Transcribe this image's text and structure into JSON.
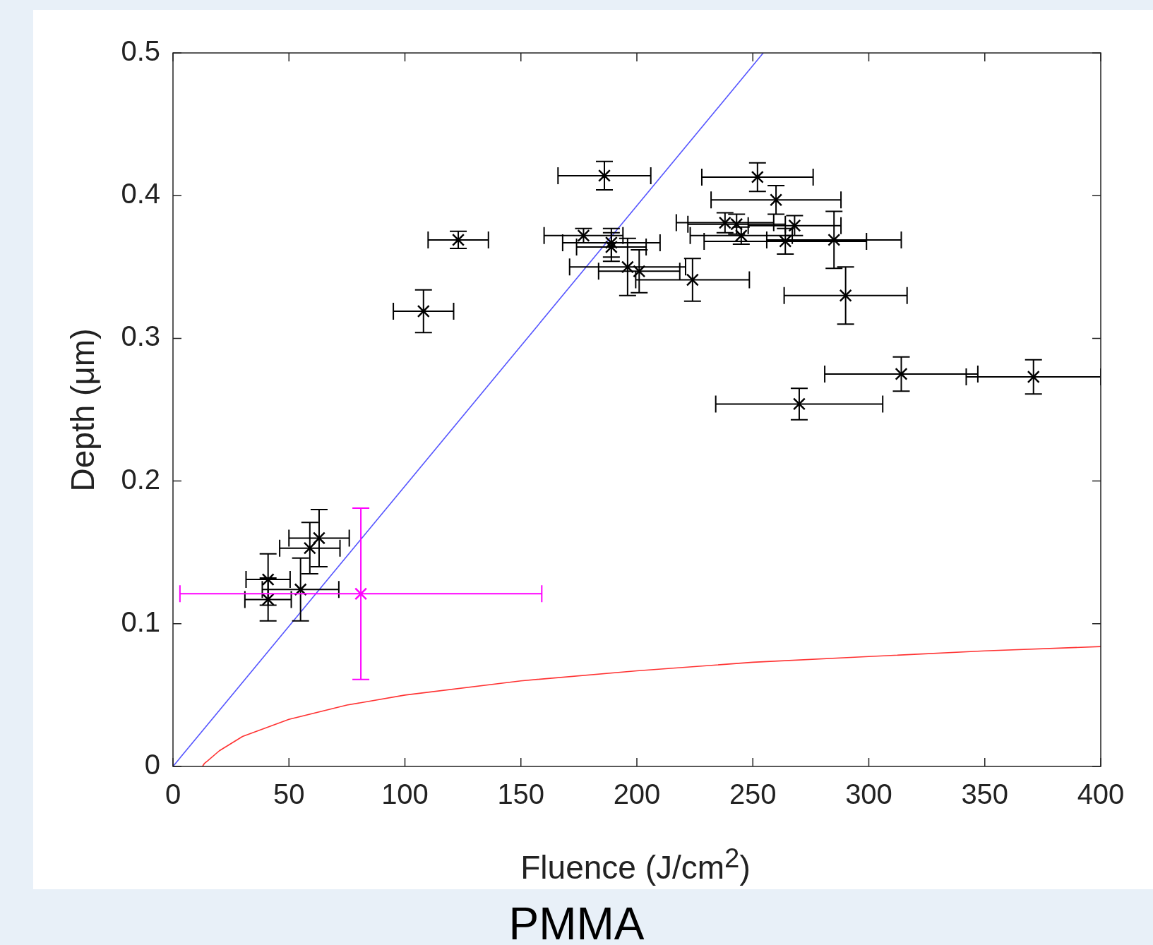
{
  "chart_data": {
    "type": "scatter",
    "title": "PMMA",
    "xlabel": "Fluence (J/cm$^{2}$)",
    "ylabel": "Depth (μm)",
    "xlim": [
      0,
      400
    ],
    "xticks": [
      0,
      50,
      100,
      150,
      200,
      250,
      300,
      350,
      400
    ],
    "ylim": [
      0,
      0.5
    ],
    "yticks": [
      0,
      0.1,
      0.2,
      0.3,
      0.4,
      0.5
    ],
    "grid": false,
    "legend": false,
    "series": [
      {
        "color": "#000000",
        "marker": "cross",
        "x": [
          41,
          41,
          55,
          59,
          63,
          108,
          123,
          186,
          252,
          260,
          177,
          189,
          189,
          196,
          201,
          224,
          238,
          243,
          245,
          268,
          264,
          285,
          290,
          270,
          314,
          371
        ],
        "values": [
          0.131,
          0.117,
          0.124,
          0.153,
          0.16,
          0.319,
          0.369,
          0.414,
          0.413,
          0.397,
          0.372,
          0.367,
          0.364,
          0.35,
          0.347,
          0.341,
          0.381,
          0.38,
          0.372,
          0.379,
          0.368,
          0.369,
          0.33,
          0.254,
          0.275,
          0.273
        ],
        "errors": [
          0.018,
          0.015,
          0.022,
          0.018,
          0.02,
          0.015,
          0.006,
          0.01,
          0.01,
          0.01,
          0.005,
          0.01,
          0.01,
          0.02,
          0.015,
          0.015,
          0.007,
          0.007,
          0.006,
          0.007,
          0.009,
          0.02,
          0.02,
          0.011,
          0.012,
          0.012
        ],
        "xerrors": [
          9.5,
          10,
          16.5,
          13,
          13,
          13,
          13,
          20,
          24,
          28,
          17,
          21,
          15,
          25,
          17.5,
          24.5,
          21,
          21,
          22,
          20,
          35,
          29,
          26.5,
          36,
          33,
          29
        ]
      },
      {
        "color": "#ff00ff",
        "marker": "cross",
        "x": [
          81
        ],
        "values": [
          0.121
        ],
        "errors": [
          0.06
        ],
        "xerrors": [
          78
        ]
      },
      {
        "type": "line",
        "color": "#5555ff",
        "marker": "none",
        "x": [
          0,
          254.5
        ],
        "values": [
          0,
          0.5
        ]
      },
      {
        "type": "line",
        "color": "#ff3333",
        "marker": "none",
        "x": [
          12.7,
          13.5,
          15,
          20,
          30,
          50,
          75,
          100,
          150,
          200,
          250,
          300,
          350,
          400
        ],
        "values": [
          0,
          0.002,
          0.004,
          0.011,
          0.021,
          0.033,
          0.043,
          0.05,
          0.06,
          0.067,
          0.073,
          0.077,
          0.081,
          0.084
        ]
      }
    ]
  }
}
